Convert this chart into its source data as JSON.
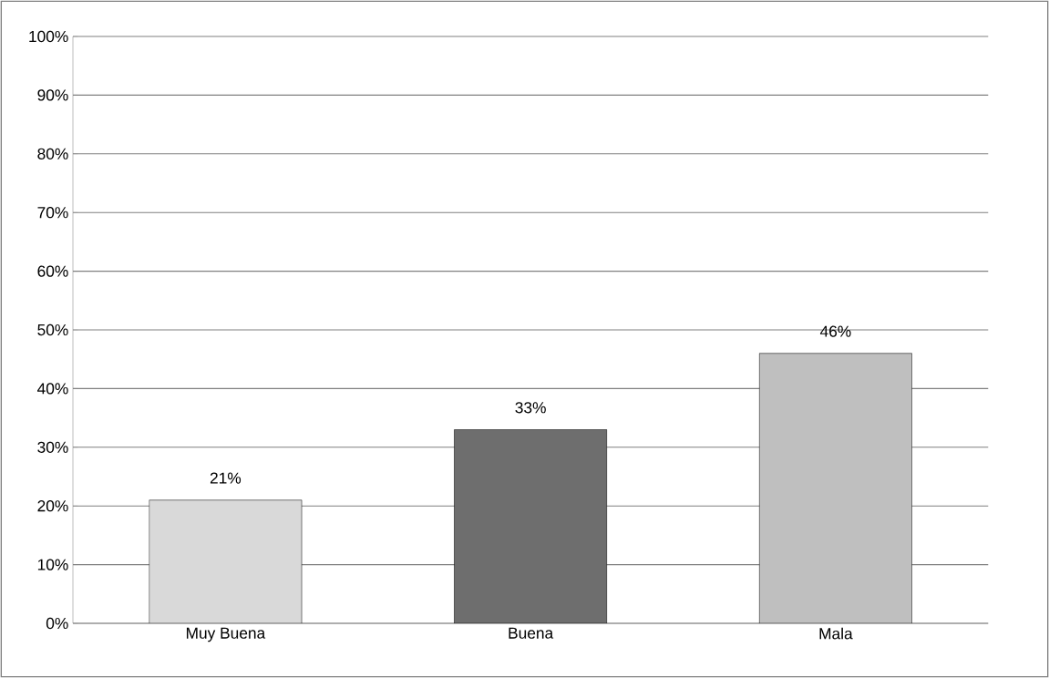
{
  "chart_data": {
    "type": "bar",
    "categories": [
      "Muy Buena",
      "Buena",
      "Mala"
    ],
    "values": [
      21,
      33,
      46
    ],
    "colors": [
      "#d9d9d9",
      "#6e6e6e",
      "#bfbfbf"
    ],
    "value_labels": [
      "21%",
      "33%",
      "46%"
    ],
    "ylim": [
      0,
      100
    ],
    "yticks": [
      {
        "value": 0,
        "label": "0%"
      },
      {
        "value": 10,
        "label": "10%"
      },
      {
        "value": 20,
        "label": "20%"
      },
      {
        "value": 30,
        "label": "30%"
      },
      {
        "value": 40,
        "label": "40%"
      },
      {
        "value": 50,
        "label": "50%"
      },
      {
        "value": 60,
        "label": "60%"
      },
      {
        "value": 70,
        "label": "70%"
      },
      {
        "value": 80,
        "label": "80%"
      },
      {
        "value": 90,
        "label": "90%"
      },
      {
        "value": 100,
        "label": "100%"
      }
    ],
    "grid": "y"
  }
}
